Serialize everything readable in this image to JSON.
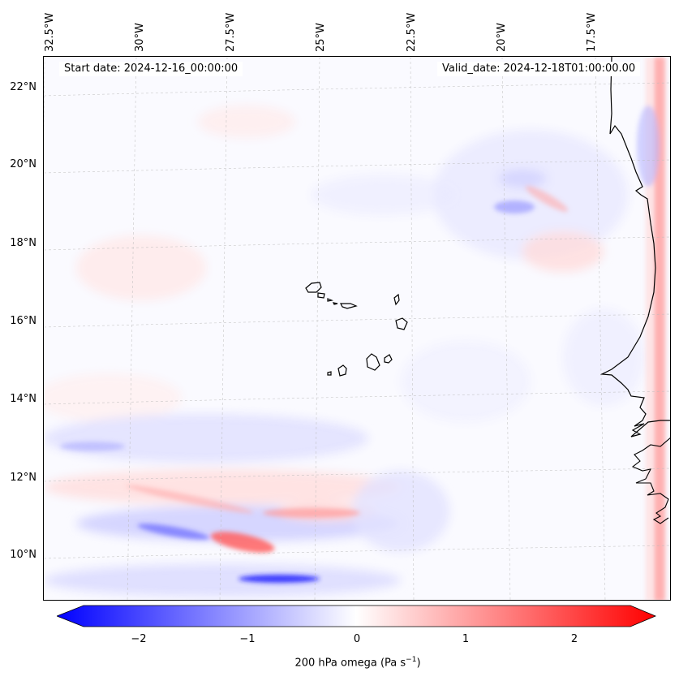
{
  "info": {
    "start_date": "Start date: 2024-12-16_00:00:00",
    "valid_date": "Valid_date: 2024-12-18T01:00:00.00"
  },
  "axes": {
    "lat_labels": [
      "22°N",
      "20°N",
      "18°N",
      "16°N",
      "14°N",
      "12°N",
      "10°N"
    ],
    "lon_labels": [
      "32.5°W",
      "30°W",
      "27.5°W",
      "25°W",
      "22.5°W",
      "20°W",
      "17.5°W"
    ]
  },
  "colorbar": {
    "ticks": [
      "−2",
      "−1",
      "0",
      "1",
      "2"
    ],
    "label_main": "200 hPa omega (Pa s",
    "label_sup": "−1",
    "label_end": ")",
    "range": [
      -2.6,
      2.6
    ],
    "colors": {
      "min": "#0000ff",
      "mid": "#ffffff",
      "max": "#ff0000"
    }
  },
  "map": {
    "field": "200 hPa omega",
    "colormap": "bwr",
    "coastline_color": "#000000",
    "gridlines": true
  }
}
